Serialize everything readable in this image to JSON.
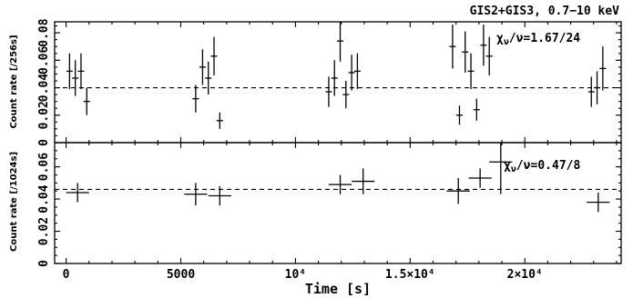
{
  "chart_data": [
    {
      "type": "scatter",
      "title": "GIS2+GIS3, 0.7−10 keV",
      "annotation": "χν/ν=1.67/24",
      "annotation_symbol": "χ",
      "annotation_subscript": "ν",
      "annotation_rest": "/ν=1.67/24",
      "ylabel": "Count rate [/256s]",
      "xlabel": "",
      "xlim": [
        -500,
        24200
      ],
      "ylim": [
        0,
        0.088
      ],
      "yticks": [
        0,
        0.02,
        0.04,
        0.06,
        0.08
      ],
      "ytick_labels": [
        "0",
        "0.02",
        "0.04",
        "0.06",
        "0.08"
      ],
      "mean_line": 0.04,
      "points": [
        {
          "x": 150,
          "y": 0.052,
          "err": 0.013
        },
        {
          "x": 400,
          "y": 0.047,
          "err": 0.013
        },
        {
          "x": 650,
          "y": 0.052,
          "err": 0.013
        },
        {
          "x": 900,
          "y": 0.03,
          "err": 0.01
        },
        {
          "x": 5650,
          "y": 0.032,
          "err": 0.01
        },
        {
          "x": 5950,
          "y": 0.055,
          "err": 0.013
        },
        {
          "x": 6200,
          "y": 0.047,
          "err": 0.012
        },
        {
          "x": 6450,
          "y": 0.063,
          "err": 0.014
        },
        {
          "x": 6700,
          "y": 0.016,
          "err": 0.006
        },
        {
          "x": 11450,
          "y": 0.037,
          "err": 0.011
        },
        {
          "x": 11700,
          "y": 0.047,
          "err": 0.013
        },
        {
          "x": 11950,
          "y": 0.074,
          "err": 0.015
        },
        {
          "x": 12200,
          "y": 0.035,
          "err": 0.01
        },
        {
          "x": 12450,
          "y": 0.051,
          "err": 0.013
        },
        {
          "x": 12700,
          "y": 0.052,
          "err": 0.013
        },
        {
          "x": 16850,
          "y": 0.07,
          "err": 0.016
        },
        {
          "x": 17150,
          "y": 0.02,
          "err": 0.007
        },
        {
          "x": 17400,
          "y": 0.066,
          "err": 0.015
        },
        {
          "x": 17650,
          "y": 0.052,
          "err": 0.013
        },
        {
          "x": 17900,
          "y": 0.024,
          "err": 0.008
        },
        {
          "x": 18200,
          "y": 0.071,
          "err": 0.015
        },
        {
          "x": 18450,
          "y": 0.063,
          "err": 0.014
        },
        {
          "x": 22900,
          "y": 0.037,
          "err": 0.011
        },
        {
          "x": 23150,
          "y": 0.04,
          "err": 0.012
        },
        {
          "x": 23400,
          "y": 0.054,
          "err": 0.016
        }
      ]
    },
    {
      "type": "scatter",
      "title": "",
      "annotation": "χν/ν=0.47/8",
      "annotation_symbol": "χ",
      "annotation_subscript": "ν",
      "annotation_rest": "/ν=0.47/8",
      "ylabel": "Count rate [/1024s]",
      "xlabel": "Time [s]",
      "xlim": [
        -500,
        24200
      ],
      "ylim": [
        0,
        0.075
      ],
      "yticks": [
        0,
        0.02,
        0.04,
        0.06
      ],
      "ytick_labels": [
        "0",
        "0.02",
        "0.04",
        "0.06"
      ],
      "xticks": [
        0,
        5000,
        10000,
        15000,
        20000
      ],
      "xtick_labels": [
        "0",
        "5000",
        "10⁴",
        "1.5×10⁴",
        "2×10⁴"
      ],
      "mean_line": 0.046,
      "points": [
        {
          "x": 500,
          "y": 0.044,
          "xerr": 500,
          "err": 0.006
        },
        {
          "x": 5650,
          "y": 0.043,
          "xerr": 500,
          "err": 0.007
        },
        {
          "x": 6700,
          "y": 0.042,
          "xerr": 500,
          "err": 0.006
        },
        {
          "x": 11950,
          "y": 0.049,
          "xerr": 500,
          "err": 0.006
        },
        {
          "x": 12950,
          "y": 0.051,
          "xerr": 500,
          "err": 0.008
        },
        {
          "x": 17100,
          "y": 0.045,
          "xerr": 500,
          "err": 0.008
        },
        {
          "x": 18050,
          "y": 0.053,
          "xerr": 500,
          "err": 0.006
        },
        {
          "x": 18950,
          "y": 0.063,
          "xerr": 500,
          "err": 0.02
        },
        {
          "x": 23200,
          "y": 0.038,
          "xerr": 500,
          "err": 0.006
        }
      ]
    }
  ]
}
